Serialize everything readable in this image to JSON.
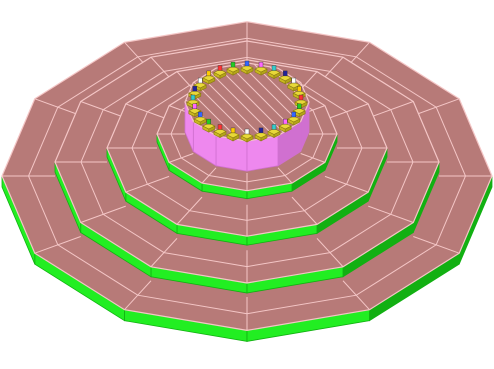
{
  "model": {
    "polygon_sides": 12,
    "tier_count": 4,
    "ring_count": 5,
    "marker_count": 24
  },
  "colors": {
    "background": "#ffffff",
    "tier_top": "#b77a78",
    "tier_edge": "#f4c6c6",
    "tier_side": "#22ee22",
    "tier_side_dark": "#12b012",
    "center_top": "#b77a78",
    "center_side": "#ee88ee",
    "center_side_dark": "#d070d0",
    "hatch": "#f4c6c6",
    "marker_base": "#e8d838",
    "marker_edge": "#8a7a10",
    "marker_caps": [
      "#ff3333",
      "#22cc22",
      "#3366ff",
      "#ff66ff",
      "#33cccc",
      "#222299",
      "#ffffff",
      "#ffcc00"
    ]
  }
}
